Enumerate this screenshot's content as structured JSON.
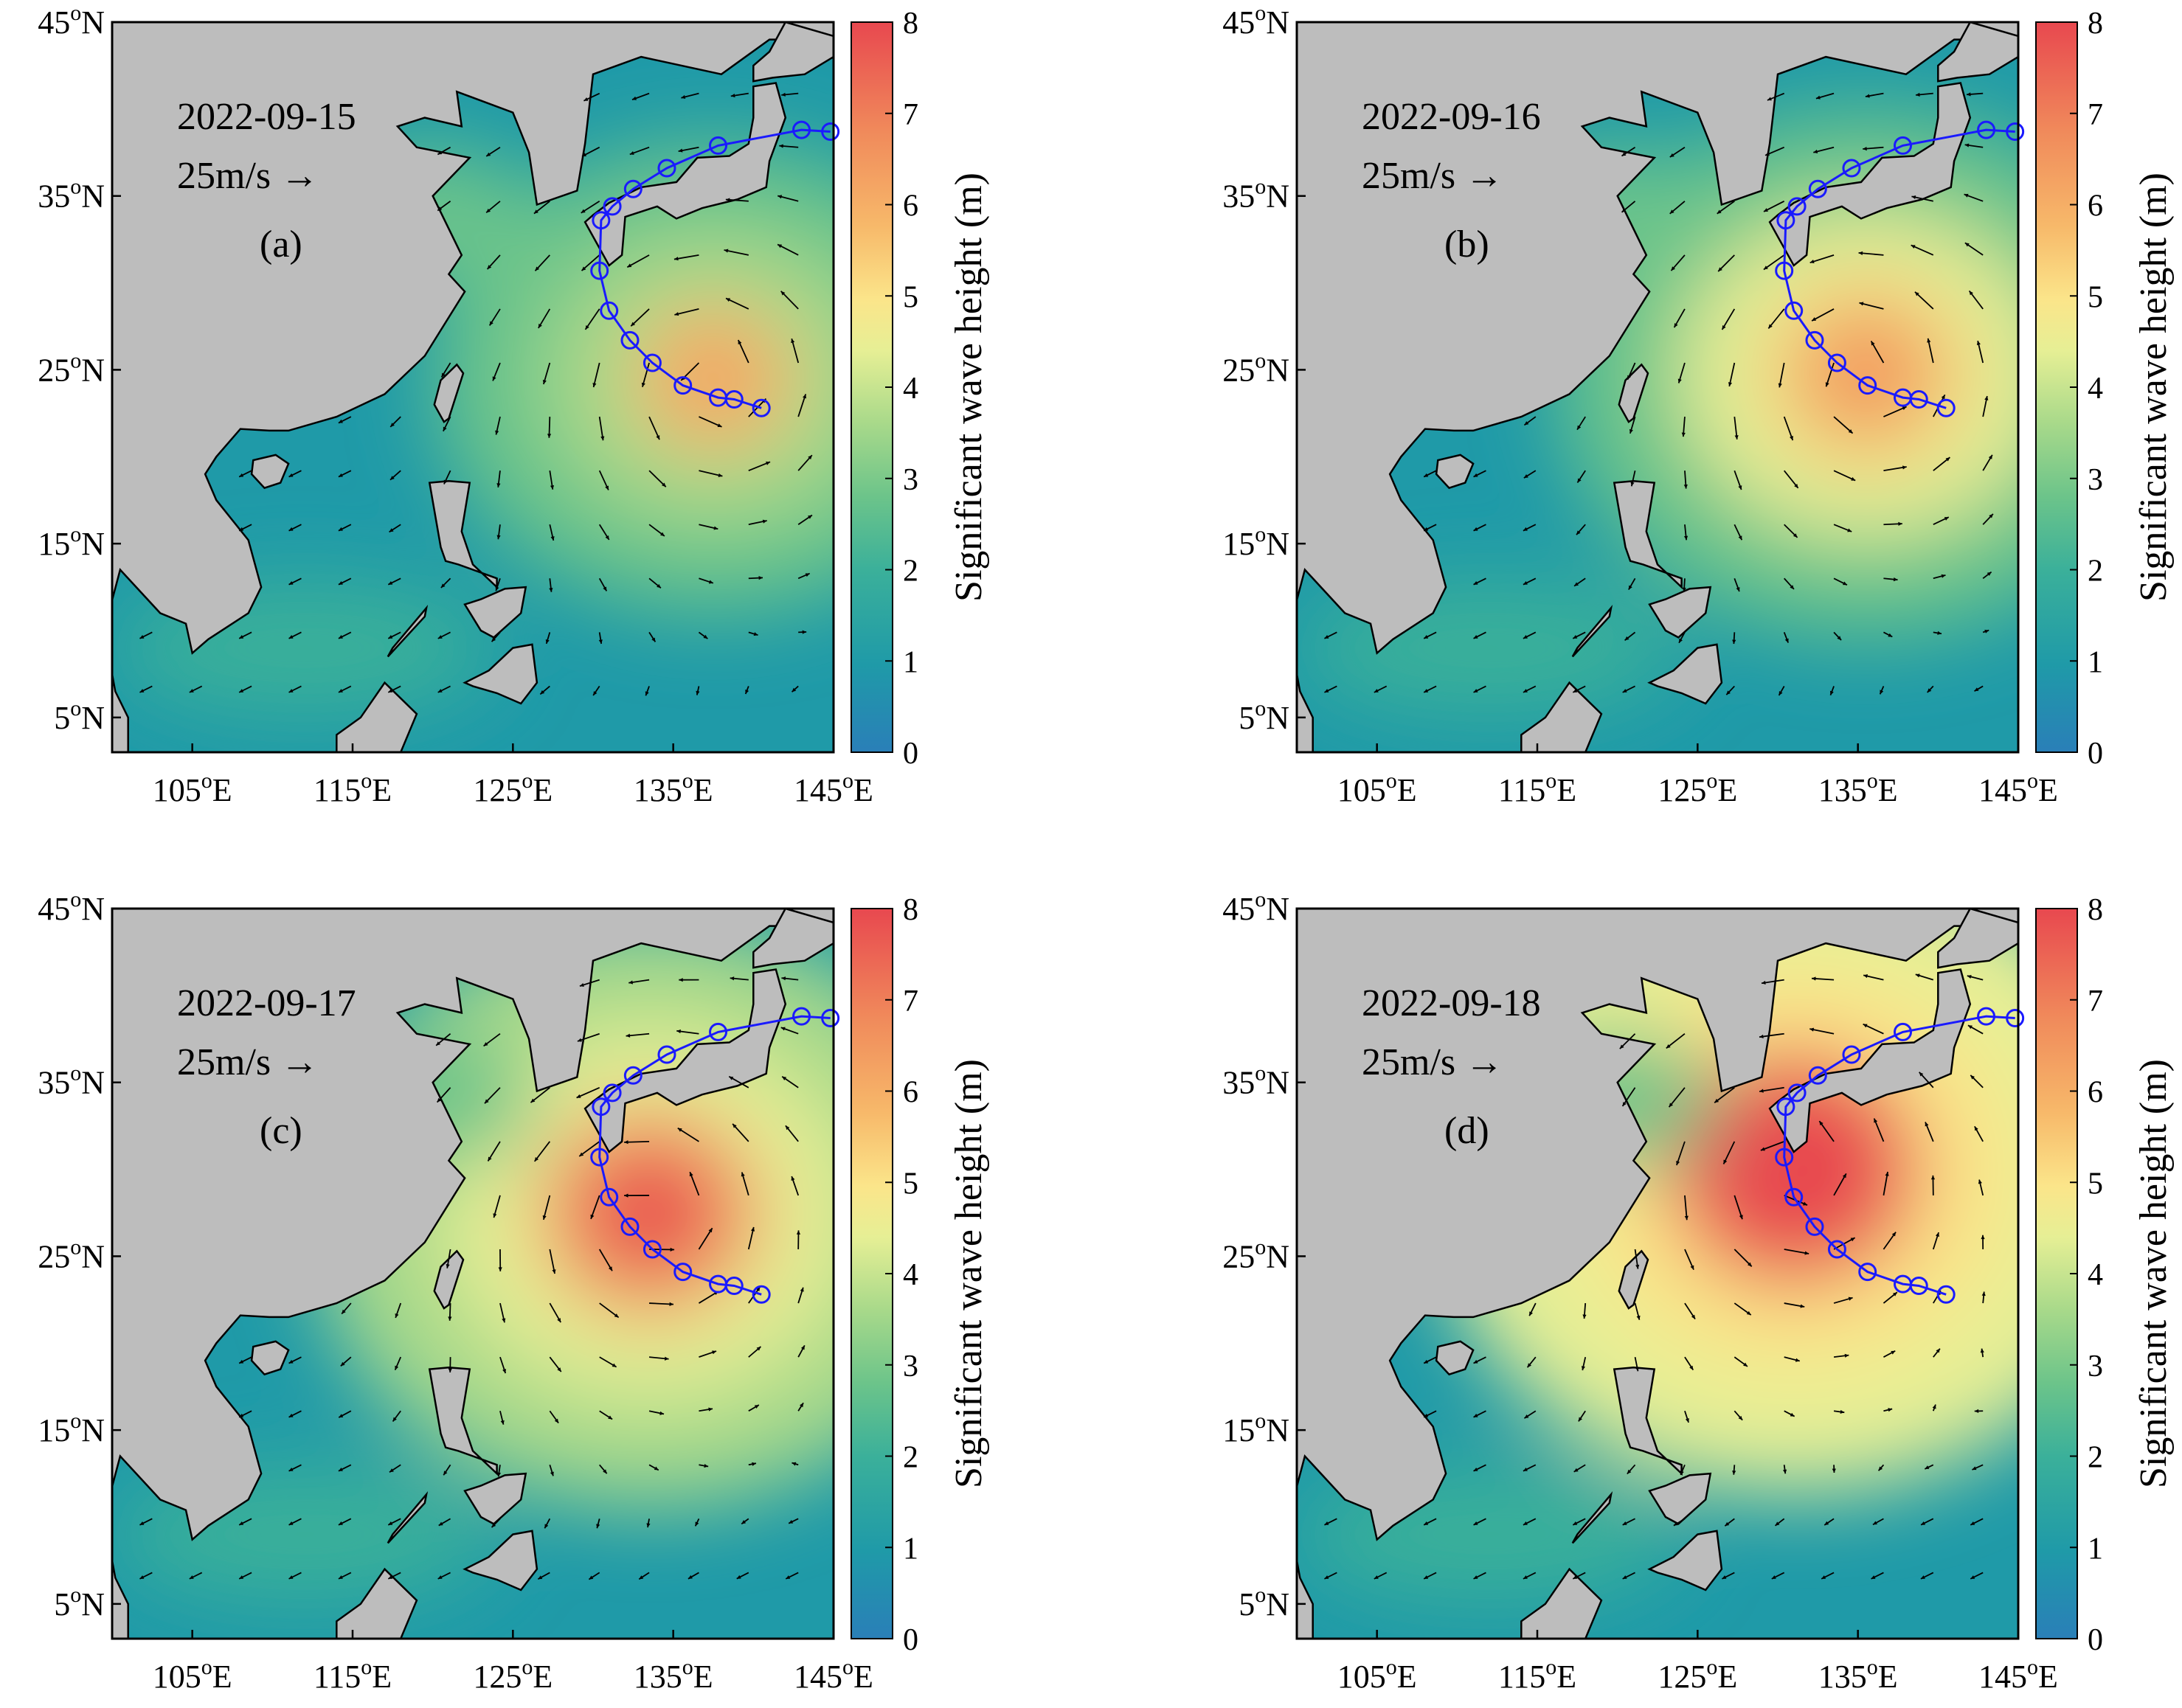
{
  "colorbar": {
    "label": "Significant wave height (m)",
    "ticks": [
      "0",
      "1",
      "2",
      "3",
      "4",
      "5",
      "6",
      "7",
      "8"
    ],
    "range": [
      0,
      8
    ],
    "colors": [
      "#2a7fb8",
      "#1f9aa8",
      "#3bb09a",
      "#6cc48a",
      "#a8d98a",
      "#e6ef95",
      "#fbe58a",
      "#f7b96a",
      "#f08a5b",
      "#e8484f"
    ]
  },
  "axes": {
    "x_ticks": [
      "105",
      "115",
      "125",
      "135",
      "145"
    ],
    "x_suffix": "E",
    "y_ticks": [
      "45",
      "35",
      "25",
      "15",
      "5"
    ],
    "y_suffix": "N",
    "degree_sign": "o",
    "lon_range": [
      100,
      145
    ],
    "lat_range": [
      3,
      45
    ]
  },
  "land_color": "#bdbdbd",
  "track_color": "#1a1aff",
  "scale_arrow": "25m/s →",
  "track": {
    "lon": [
      140.5,
      138.8,
      137.8,
      135.6,
      133.7,
      132.3,
      131.0,
      130.4,
      130.5,
      131.2,
      132.5,
      134.6,
      137.8,
      143.0,
      144.8
    ],
    "lat": [
      22.8,
      23.3,
      23.4,
      24.1,
      25.4,
      26.7,
      28.4,
      30.7,
      33.6,
      34.4,
      35.4,
      36.6,
      37.9,
      38.8,
      38.7
    ]
  },
  "panels": [
    {
      "id": "a",
      "date": "2022-09-15",
      "label": "(a)",
      "center": {
        "lon": 137.5,
        "lat": 24.5
      }
    },
    {
      "id": "b",
      "date": "2022-09-16",
      "label": "(b)",
      "center": {
        "lon": 135.5,
        "lat": 24.8
      }
    },
    {
      "id": "c",
      "date": "2022-09-17",
      "label": "(c)",
      "center": {
        "lon": 133.5,
        "lat": 27.5
      }
    },
    {
      "id": "d",
      "date": "2022-09-18",
      "label": "(d)",
      "center": {
        "lon": 131.0,
        "lat": 30.0
      }
    }
  ]
}
